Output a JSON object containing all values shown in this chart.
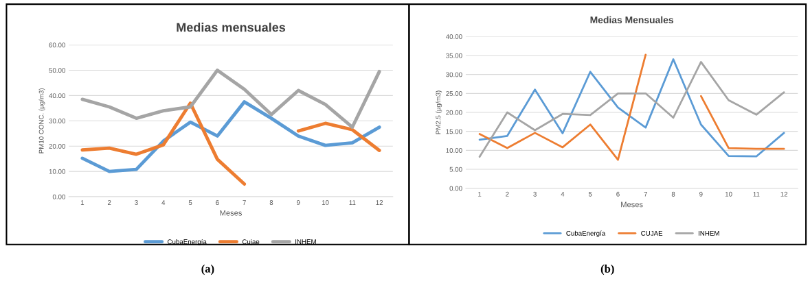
{
  "chart_data": [
    {
      "type": "line",
      "title": "Medias mensuales",
      "xlabel": "Meses",
      "ylabel": "PM10 CONC. (µg/m3)",
      "categories": [
        "1",
        "2",
        "3",
        "4",
        "5",
        "6",
        "7",
        "8",
        "9",
        "10",
        "11",
        "12"
      ],
      "series": [
        {
          "name": "CubaEnergía",
          "color": "#5b9bd5",
          "values": [
            15.2,
            10,
            10.8,
            22,
            29.5,
            24,
            37.5,
            31,
            24,
            20.3,
            21.3,
            27.5
          ]
        },
        {
          "name": "Cujae",
          "color": "#ed7d31",
          "values": [
            18.5,
            19.2,
            16.8,
            20.5,
            37,
            14.8,
            5,
            null,
            26,
            29,
            26.5,
            18.3
          ]
        },
        {
          "name": "INHEM",
          "color": "#a5a5a5",
          "values": [
            38.5,
            35.5,
            31,
            34,
            35.5,
            50,
            42.5,
            32.5,
            42,
            36.5,
            27.5,
            49.5
          ]
        }
      ],
      "ylim": [
        0,
        60
      ],
      "yticks": [
        {
          "value": 0,
          "label": "0.00"
        },
        {
          "value": 10,
          "label": "10.00"
        },
        {
          "value": 20,
          "label": "20.00"
        },
        {
          "value": 30,
          "label": "30.00"
        },
        {
          "value": 40,
          "label": "40.00"
        },
        {
          "value": 50,
          "label": "50.00"
        },
        {
          "value": 60,
          "label": "60.00"
        }
      ],
      "grid": "y",
      "legend": "bottom",
      "annotations": [
        "(a)"
      ]
    },
    {
      "type": "line",
      "title": "Medias Mensuales",
      "xlabel": "Meses",
      "ylabel": "PM2.5 (µg/m3)",
      "categories": [
        "1",
        "2",
        "3",
        "4",
        "5",
        "6",
        "7",
        "8",
        "9",
        "10",
        "11",
        "12"
      ],
      "series": [
        {
          "name": "CubaEnergía",
          "color": "#5b9bd5",
          "values": [
            12.8,
            13.8,
            26,
            14.5,
            30.7,
            21.3,
            16,
            34,
            16.8,
            8.5,
            8.4,
            14.6
          ]
        },
        {
          "name": "CUJAE",
          "color": "#ed7d31",
          "values": [
            14.3,
            10.6,
            14.6,
            10.8,
            16.8,
            7.5,
            35.2,
            null,
            24.3,
            10.6,
            10.4,
            10.4
          ]
        },
        {
          "name": "INHEM",
          "color": "#a5a5a5",
          "values": [
            8.3,
            20,
            15.3,
            19.6,
            19.3,
            25,
            25,
            18.6,
            33.3,
            23.2,
            19.4,
            25.3
          ]
        }
      ],
      "ylim": [
        0,
        40
      ],
      "yticks": [
        {
          "value": 0,
          "label": "0.00"
        },
        {
          "value": 5,
          "label": "5.00"
        },
        {
          "value": 10,
          "label": "10.00"
        },
        {
          "value": 15,
          "label": "15.00"
        },
        {
          "value": 20,
          "label": "20.00"
        },
        {
          "value": 25,
          "label": "25.00"
        },
        {
          "value": 30,
          "label": "30.00"
        },
        {
          "value": 35,
          "label": "35.00"
        },
        {
          "value": 40,
          "label": "40.00"
        }
      ],
      "grid": "y",
      "legend": "bottom",
      "annotations": [
        "(b)"
      ]
    }
  ]
}
